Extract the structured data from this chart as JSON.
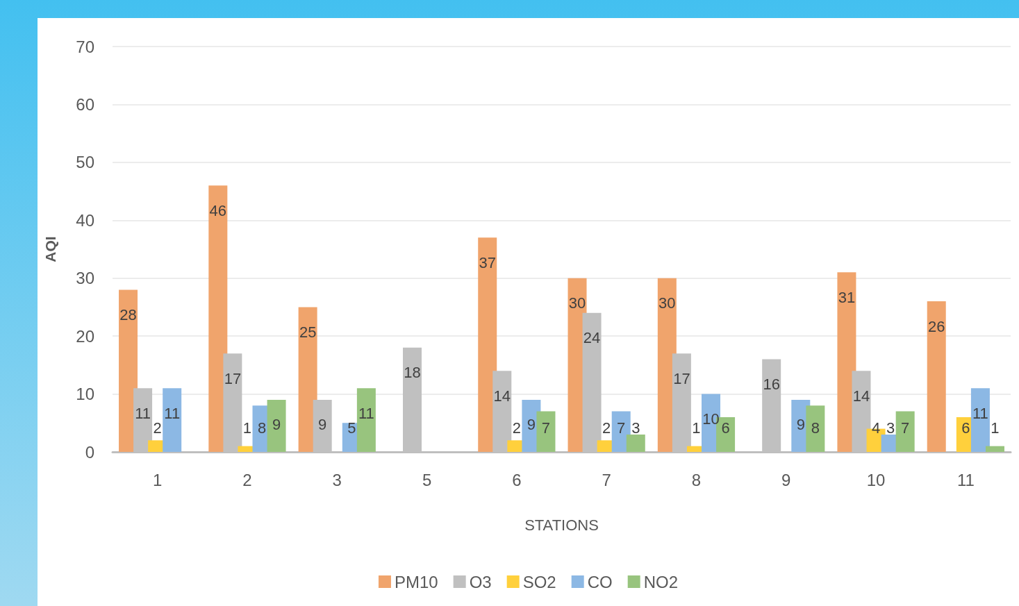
{
  "chart_data": {
    "type": "bar",
    "categories": [
      "1",
      "2",
      "3",
      "5",
      "6",
      "7",
      "8",
      "9",
      "10",
      "11"
    ],
    "xlabel": "STATIONS",
    "ylabel": "AQI",
    "ylim": [
      0,
      70
    ],
    "yticks": [
      0,
      10,
      20,
      30,
      40,
      50,
      60,
      70
    ],
    "grid": "y",
    "legend": "bottom",
    "data_labels": true,
    "series": [
      {
        "name": "PM10",
        "color": "#f0a46c",
        "values": [
          28,
          46,
          25,
          null,
          37,
          30,
          30,
          null,
          31,
          26
        ]
      },
      {
        "name": "O3",
        "color": "#c0c0c0",
        "values": [
          11,
          17,
          9,
          18,
          14,
          24,
          17,
          16,
          14,
          null
        ]
      },
      {
        "name": "SO2",
        "color": "#ffd03c",
        "values": [
          2,
          1,
          null,
          null,
          2,
          2,
          1,
          null,
          4,
          6
        ]
      },
      {
        "name": "CO",
        "color": "#8cb8e4",
        "values": [
          11,
          8,
          5,
          null,
          9,
          7,
          10,
          9,
          3,
          11
        ]
      },
      {
        "name": "NO2",
        "color": "#98c47e",
        "values": [
          null,
          9,
          11,
          null,
          7,
          3,
          6,
          8,
          7,
          1
        ]
      }
    ]
  }
}
